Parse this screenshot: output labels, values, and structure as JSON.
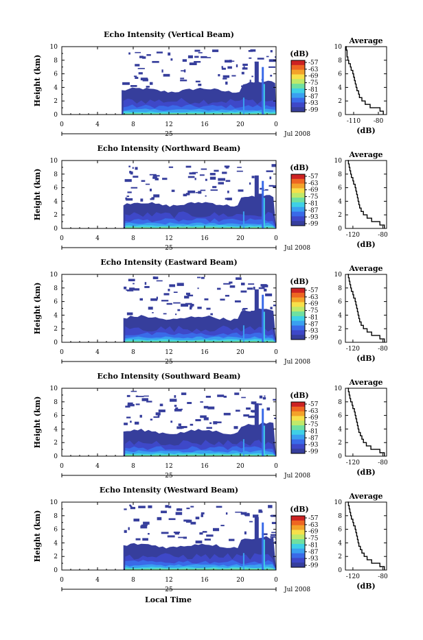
{
  "x_axis_label": "Local Time",
  "colorbar": {
    "unit": "(dB)",
    "ticks": [
      "-57",
      "-63",
      "-69",
      "-75",
      "-81",
      "-87",
      "-93",
      "-99"
    ],
    "colors": [
      "#cc2222",
      "#ee6622",
      "#f3a22a",
      "#f7e04a",
      "#bfe96a",
      "#6fe0a0",
      "#3fd0e6",
      "#3aa0f0",
      "#3a6ae8",
      "#3e48c8",
      "#363e9c"
    ]
  },
  "average_ylabel": "(dB)",
  "chart_data": [
    {
      "type": "heatmap",
      "title": "Echo Intensity (Vertical Beam)",
      "ylabel": "Height (km)",
      "ylim": [
        0,
        10
      ],
      "yticks": [
        "0",
        "2",
        "4",
        "6",
        "8",
        "10"
      ],
      "xlim": [
        0,
        24
      ],
      "xticks": [
        "0",
        "4",
        "8",
        "12",
        "16",
        "20",
        "0"
      ],
      "date_day": "25",
      "date_label": "Jul 2008",
      "data_start_hour": 6.7,
      "colorbar_range_db": [
        -99,
        -57
      ],
      "average": {
        "title": "Average",
        "xticks": [
          "-110",
          "-80"
        ],
        "xlim": [
          -120,
          -70
        ],
        "height_km": [
          0,
          0.5,
          1,
          1.5,
          2,
          2.5,
          3,
          3.5,
          4,
          4.5,
          5,
          5.5,
          6,
          6.5,
          7,
          7.5,
          8,
          8.5,
          9,
          9.5,
          10
        ],
        "db": [
          -74,
          -78,
          -90,
          -96,
          -100,
          -103,
          -104,
          -106,
          -107,
          -108,
          -109,
          -110,
          -111,
          -113,
          -114,
          -116,
          -117,
          -118,
          -118,
          -119,
          -120
        ]
      }
    },
    {
      "type": "heatmap",
      "title": "Echo Intensity (Northward Beam)",
      "ylabel": "Height (km)",
      "ylim": [
        0,
        10
      ],
      "yticks": [
        "0",
        "2",
        "4",
        "6",
        "8",
        "10"
      ],
      "xlim": [
        0,
        24
      ],
      "xticks": [
        "0",
        "4",
        "8",
        "12",
        "16",
        "20",
        "0"
      ],
      "date_day": "25",
      "date_label": "Jul 2008",
      "data_start_hour": 6.9,
      "colorbar_range_db": [
        -99,
        -57
      ],
      "average": {
        "title": "Average",
        "xticks": [
          "-120",
          "-80"
        ],
        "xlim": [
          -130,
          -75
        ],
        "height_km": [
          0,
          0.5,
          1,
          1.5,
          2,
          2.5,
          3,
          3.5,
          4,
          4.5,
          5,
          5.5,
          6,
          6.5,
          7,
          7.5,
          8,
          8.5,
          9,
          9.5,
          10
        ],
        "db": [
          -78,
          -84,
          -95,
          -101,
          -106,
          -109,
          -111,
          -112,
          -113,
          -114,
          -115,
          -116,
          -117,
          -119,
          -120,
          -122,
          -123,
          -124,
          -125,
          -126,
          -127
        ]
      }
    },
    {
      "type": "heatmap",
      "title": "Echo Intensity (Eastward Beam)",
      "ylabel": "Height (km)",
      "ylim": [
        0,
        10
      ],
      "yticks": [
        "0",
        "2",
        "4",
        "6",
        "8",
        "10"
      ],
      "xlim": [
        0,
        24
      ],
      "xticks": [
        "0",
        "4",
        "8",
        "12",
        "16",
        "20",
        "0"
      ],
      "date_day": "25",
      "date_label": "Jul 2008",
      "data_start_hour": 6.9,
      "colorbar_range_db": [
        -99,
        -57
      ],
      "average": {
        "title": "Average",
        "xticks": [
          "-120",
          "-80"
        ],
        "xlim": [
          -130,
          -75
        ],
        "height_km": [
          0,
          0.5,
          1,
          1.5,
          2,
          2.5,
          3,
          3.5,
          4,
          4.5,
          5,
          5.5,
          6,
          6.5,
          7,
          7.5,
          8,
          8.5,
          9,
          9.5,
          10
        ],
        "db": [
          -78,
          -84,
          -95,
          -101,
          -106,
          -109,
          -111,
          -112,
          -113,
          -114,
          -115,
          -116,
          -117,
          -119,
          -120,
          -122,
          -123,
          -124,
          -125,
          -126,
          -127
        ]
      }
    },
    {
      "type": "heatmap",
      "title": "Echo Intensity (Southward Beam)",
      "ylabel": "Height (km)",
      "ylim": [
        0,
        10
      ],
      "yticks": [
        "0",
        "2",
        "4",
        "6",
        "8",
        "10"
      ],
      "xlim": [
        0,
        24
      ],
      "xticks": [
        "0",
        "4",
        "8",
        "12",
        "16",
        "20",
        "0"
      ],
      "date_day": "25",
      "date_label": "Jul 2008",
      "data_start_hour": 6.9,
      "colorbar_range_db": [
        -99,
        -57
      ],
      "average": {
        "title": "Average",
        "xticks": [
          "-120",
          "-80"
        ],
        "xlim": [
          -130,
          -75
        ],
        "height_km": [
          0,
          0.5,
          1,
          1.5,
          2,
          2.5,
          3,
          3.5,
          4,
          4.5,
          5,
          5.5,
          6,
          6.5,
          7,
          7.5,
          8,
          8.5,
          9,
          9.5,
          10
        ],
        "db": [
          -78,
          -84,
          -96,
          -102,
          -106,
          -108,
          -110,
          -112,
          -113,
          -114,
          -115,
          -116,
          -117,
          -118,
          -120,
          -121,
          -123,
          -124,
          -125,
          -126,
          -127
        ]
      }
    },
    {
      "type": "heatmap",
      "title": "Echo Intensity (Westward Beam)",
      "ylabel": "Height (km)",
      "ylim": [
        0,
        10
      ],
      "yticks": [
        "0",
        "2",
        "4",
        "6",
        "8",
        "10"
      ],
      "xlim": [
        0,
        24
      ],
      "xticks": [
        "0",
        "4",
        "8",
        "12",
        "16",
        "20",
        "0"
      ],
      "date_day": "25",
      "date_label": "Jul 2008",
      "data_start_hour": 6.9,
      "colorbar_range_db": [
        -99,
        -57
      ],
      "average": {
        "title": "Average",
        "xticks": [
          "-120",
          "-80"
        ],
        "xlim": [
          -130,
          -75
        ],
        "height_km": [
          0,
          0.5,
          1,
          1.5,
          2,
          2.5,
          3,
          3.5,
          4,
          4.5,
          5,
          5.5,
          6,
          6.5,
          7,
          7.5,
          8,
          8.5,
          9,
          9.5,
          10
        ],
        "db": [
          -78,
          -84,
          -95,
          -101,
          -105,
          -108,
          -110,
          -112,
          -113,
          -114,
          -115,
          -116,
          -117,
          -119,
          -120,
          -122,
          -123,
          -124,
          -125,
          -126,
          -127
        ]
      }
    }
  ]
}
